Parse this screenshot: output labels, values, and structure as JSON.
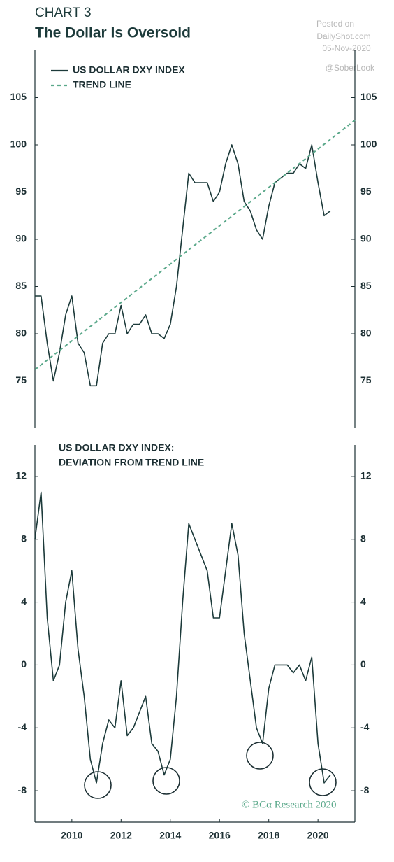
{
  "header": {
    "chart_label": "CHART 3",
    "title": "The Dollar Is Oversold"
  },
  "watermark": {
    "line1": "Posted on",
    "line2": "DailyShot.com",
    "line3": "05-Nov-2020",
    "handle": "@SoberLook"
  },
  "credit": "© BCα Research 2020",
  "chart_data": [
    {
      "type": "line",
      "x": [
        2008.5,
        2008.75,
        2009.0,
        2009.25,
        2009.5,
        2009.75,
        2010.0,
        2010.25,
        2010.5,
        2010.75,
        2011.0,
        2011.25,
        2011.5,
        2011.75,
        2012.0,
        2012.25,
        2012.5,
        2012.75,
        2013.0,
        2013.25,
        2013.5,
        2013.75,
        2014.0,
        2014.25,
        2014.5,
        2014.75,
        2015.0,
        2015.25,
        2015.5,
        2015.75,
        2016.0,
        2016.25,
        2016.5,
        2016.75,
        2017.0,
        2017.25,
        2017.5,
        2017.75,
        2018.0,
        2018.25,
        2018.5,
        2018.75,
        2019.0,
        2019.25,
        2019.5,
        2019.75,
        2020.0,
        2020.25,
        2020.5
      ],
      "xlim": [
        2008.5,
        2021.5
      ],
      "ylim": [
        70,
        110
      ],
      "yticks": [
        75,
        80,
        85,
        90,
        95,
        100,
        105
      ],
      "series": [
        {
          "name": "US DOLLAR DXY INDEX",
          "color": "#1c3a3a",
          "style": "solid",
          "values": [
            84,
            84,
            79,
            75,
            78,
            82,
            84,
            79,
            78,
            74.5,
            74.5,
            79,
            80,
            80,
            83,
            80,
            81,
            81,
            82,
            80,
            80,
            79.5,
            81,
            85,
            91,
            97,
            96,
            96,
            96,
            94,
            95,
            98,
            100,
            98,
            94,
            93,
            91,
            90,
            93.5,
            96,
            96.5,
            97,
            97,
            98,
            97.5,
            100,
            96,
            92.5,
            93
          ]
        },
        {
          "name": "TREND LINE",
          "color": "#5aa88a",
          "style": "dashed",
          "x": [
            2008.5,
            2021.5
          ],
          "values": [
            76.2,
            102.6
          ]
        }
      ]
    },
    {
      "type": "line",
      "title": [
        "US DOLLAR DXY INDEX:",
        "DEVIATION FROM TREND LINE"
      ],
      "x": [
        2008.5,
        2008.75,
        2009.0,
        2009.25,
        2009.5,
        2009.75,
        2010.0,
        2010.25,
        2010.5,
        2010.75,
        2011.0,
        2011.25,
        2011.5,
        2011.75,
        2012.0,
        2012.25,
        2012.5,
        2012.75,
        2013.0,
        2013.25,
        2013.5,
        2013.75,
        2014.0,
        2014.25,
        2014.5,
        2014.75,
        2015.0,
        2015.25,
        2015.5,
        2015.75,
        2016.0,
        2016.25,
        2016.5,
        2016.75,
        2017.0,
        2017.25,
        2017.5,
        2017.75,
        2018.0,
        2018.25,
        2018.5,
        2018.75,
        2019.0,
        2019.25,
        2019.5,
        2019.75,
        2020.0,
        2020.25,
        2020.5
      ],
      "xlim": [
        2008.5,
        2021.5
      ],
      "xticks": [
        2010,
        2012,
        2014,
        2016,
        2018,
        2020
      ],
      "ylim": [
        -10,
        14
      ],
      "yticks": [
        -8,
        -4,
        0,
        4,
        8,
        12
      ],
      "series": [
        {
          "color": "#1c3a3a",
          "style": "solid",
          "values": [
            8,
            11,
            3,
            -1,
            0,
            4,
            6,
            1,
            -2,
            -6,
            -7.5,
            -5,
            -3.5,
            -4,
            -1,
            -4.5,
            -4,
            -3,
            -2,
            -5,
            -5.5,
            -7,
            -6,
            -2,
            4,
            9,
            8,
            7,
            6,
            3,
            3,
            6,
            9,
            7,
            2,
            -1,
            -4,
            -5,
            -1.5,
            0,
            0,
            0,
            -0.5,
            0,
            -1,
            0.5,
            -5,
            -7.5,
            -7
          ]
        }
      ]
    }
  ]
}
